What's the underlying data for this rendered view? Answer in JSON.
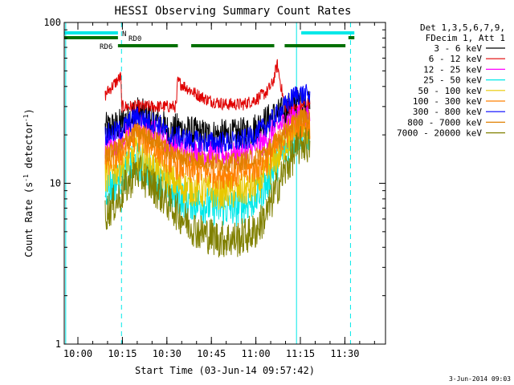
{
  "chart_data": {
    "type": "line",
    "title": "HESSI Observing Summary Count Rates",
    "xlabel": "Start Time (03-Jun-14 09:57:42)",
    "ylabel_main": "Count Rate (s",
    "ylabel_sup1": "-1",
    "ylabel_mid": " detector",
    "ylabel_sup2": "-1",
    "ylabel_end": ")",
    "yscale": "log",
    "ylim": [
      1,
      100
    ],
    "xlim_min": [
      -2.3,
      106
    ],
    "x_ticks": [
      {
        "t": 2.3,
        "label": "10:00"
      },
      {
        "t": 17.3,
        "label": "10:15"
      },
      {
        "t": 32.3,
        "label": "10:30"
      },
      {
        "t": 47.3,
        "label": "10:45"
      },
      {
        "t": 62.3,
        "label": "11:00"
      },
      {
        "t": 77.3,
        "label": "11:15"
      },
      {
        "t": 92.3,
        "label": "11:30"
      }
    ],
    "y_ticks": [
      {
        "v": 1,
        "label": "1"
      },
      {
        "v": 10,
        "label": "10"
      },
      {
        "v": 100,
        "label": "100"
      }
    ],
    "legend": {
      "header1": "Det 1,3,5,6,7,9,",
      "header2": "FDecim 1, Att 1",
      "entries": [
        {
          "label": "3 - 6 keV",
          "color": "#000000"
        },
        {
          "label": "6 - 12 keV",
          "color": "#e00000"
        },
        {
          "label": "12 - 25 keV",
          "color": "#ff00ff"
        },
        {
          "label": "25 - 50 keV",
          "color": "#00e8e8"
        },
        {
          "label": "50 - 100 keV",
          "color": "#e8c800"
        },
        {
          "label": "100 - 300 keV",
          "color": "#ff8000"
        },
        {
          "label": "300 - 800 keV",
          "color": "#0000ff"
        },
        {
          "label": "800 - 7000 keV",
          "color": "#e08000"
        },
        {
          "label": "7000 - 20000 keV",
          "color": "#808000"
        }
      ]
    },
    "flag_bars": [
      {
        "label": "N",
        "color": "#00e8e8",
        "segments": [
          [
            -2.3,
            15.8
          ],
          [
            77.6,
            95.5
          ]
        ]
      },
      {
        "label": "RD0",
        "color": "#007000",
        "segments": [
          [
            -2.3,
            15.8
          ],
          [
            93.5,
            95.5
          ]
        ]
      },
      {
        "label": "RD6",
        "color": "#007000",
        "segments": [
          [
            15.8,
            36.0
          ],
          [
            40.5,
            68.5
          ],
          [
            72.0,
            92.5
          ]
        ]
      }
    ],
    "markers": [
      {
        "t": -1.8,
        "style": "solid"
      },
      {
        "t": 17.0,
        "style": "dashed"
      },
      {
        "t": 76.0,
        "style": "solid"
      },
      {
        "t": 94.2,
        "style": "dashed"
      }
    ],
    "series": [
      {
        "name": "3 - 6 keV",
        "color": "#000000",
        "noise": 0.1,
        "t": [
          11.5,
          16,
          22,
          30,
          33,
          36,
          40,
          45,
          50,
          55,
          60,
          65,
          68,
          72,
          76,
          80.5
        ],
        "v": [
          22,
          23,
          28,
          24,
          21,
          22,
          21,
          20,
          20,
          20,
          21,
          24,
          26,
          28,
          32,
          30
        ]
      },
      {
        "name": "6 - 12 keV",
        "color": "#e00000",
        "noise": 0.04,
        "t": [
          11.5,
          12.2,
          16.8,
          17.0,
          35.5,
          35.9,
          42,
          46,
          52,
          58,
          62,
          66,
          68,
          69.5,
          72,
          76,
          80.5
        ],
        "v": [
          35,
          37,
          46,
          30,
          30,
          43,
          36,
          33,
          31,
          31,
          33,
          37,
          42,
          55,
          30,
          29,
          32
        ]
      },
      {
        "name": "12 - 25 keV",
        "color": "#ff00ff",
        "noise": 0.08,
        "t": [
          11.5,
          16,
          22,
          30,
          33,
          36,
          40,
          45,
          50,
          55,
          60,
          65,
          68,
          72,
          76,
          80.5
        ],
        "v": [
          17,
          18,
          23,
          20,
          17,
          17,
          16,
          15.5,
          15,
          15,
          16,
          18,
          21,
          24,
          27,
          25
        ]
      },
      {
        "name": "25 - 50 keV",
        "color": "#00e8e8",
        "noise": 0.12,
        "t": [
          11.5,
          16,
          22,
          28,
          33,
          38,
          43,
          50,
          56,
          62,
          66,
          70,
          74,
          78,
          80.5
        ],
        "v": [
          9,
          10.5,
          14,
          11,
          9,
          8,
          7.5,
          7,
          7,
          8,
          10,
          14,
          18,
          21,
          20
        ]
      },
      {
        "name": "50 - 100 keV",
        "color": "#e8c800",
        "noise": 0.11,
        "t": [
          11.5,
          16,
          22,
          28,
          33,
          38,
          43,
          50,
          56,
          62,
          66,
          70,
          74,
          78,
          80.5
        ],
        "v": [
          11,
          12.5,
          15.5,
          12.5,
          10.5,
          9.5,
          9,
          8.8,
          8.8,
          9.5,
          11.5,
          15,
          19,
          22,
          21
        ]
      },
      {
        "name": "100 - 300 keV",
        "color": "#ff8000",
        "noise": 0.1,
        "t": [
          11.5,
          16,
          22,
          28,
          33,
          38,
          43,
          50,
          56,
          62,
          66,
          70,
          74,
          78,
          80.5
        ],
        "v": [
          13.5,
          15,
          20,
          17,
          14,
          12.5,
          12,
          11.5,
          11.5,
          12.5,
          14,
          17.5,
          21,
          24,
          23
        ]
      },
      {
        "name": "300 - 800 keV",
        "color": "#0000ff",
        "noise": 0.07,
        "t": [
          11.5,
          16,
          22,
          30,
          33,
          36,
          40,
          45,
          50,
          55,
          60,
          65,
          68,
          72,
          76,
          80.5
        ],
        "v": [
          20,
          21,
          26,
          23,
          19.5,
          19.5,
          18.5,
          18,
          18,
          18,
          19,
          22,
          25,
          30,
          36,
          35
        ]
      },
      {
        "name": "800 - 7000 keV",
        "color": "#e08000",
        "noise": 0.06,
        "t": [
          11.5,
          16,
          22,
          30,
          33,
          38,
          44,
          50,
          56,
          62,
          66,
          70,
          74,
          78,
          80.5
        ],
        "v": [
          15,
          16.5,
          21,
          18,
          15.5,
          14.5,
          14,
          13.5,
          13.5,
          14.5,
          16,
          19,
          23,
          26,
          25
        ]
      },
      {
        "name": "7000 - 20000 keV",
        "color": "#808000",
        "noise": 0.12,
        "t": [
          11.5,
          16,
          22,
          28,
          33,
          38,
          43,
          50,
          56,
          62,
          66,
          70,
          74,
          78,
          80.5
        ],
        "v": [
          6.5,
          8,
          12,
          9.5,
          7.5,
          6,
          5,
          4.5,
          4.5,
          5,
          6.5,
          10,
          14,
          18,
          17
        ]
      }
    ],
    "grid": false,
    "legend_position": "right-outside"
  },
  "stamp": "3-Jun-2014 09:03"
}
